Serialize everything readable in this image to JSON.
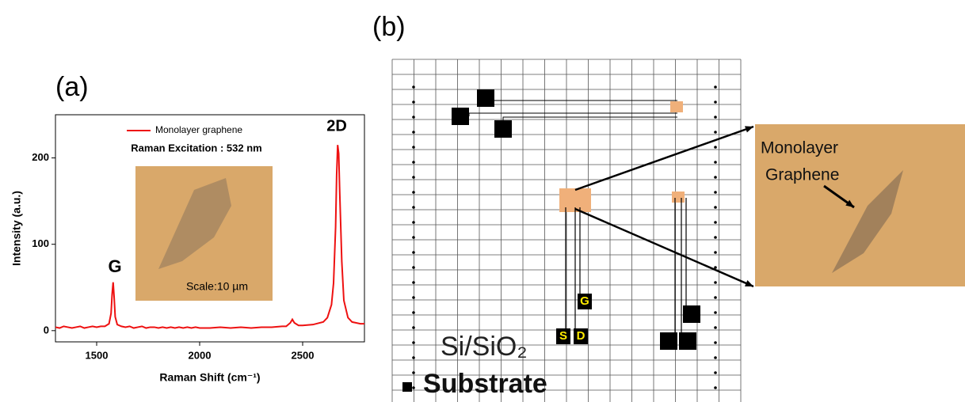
{
  "chart_data": {
    "type": "line",
    "xlabel": "Raman Shift (cm⁻¹)",
    "ylabel": "Intensity (a.u.)",
    "annotations": [
      "G",
      "2D",
      "Raman Excitation : 532 nm",
      "Scale:10 µm"
    ],
    "x": [
      1300,
      1320,
      1340,
      1360,
      1380,
      1400,
      1420,
      1440,
      1460,
      1480,
      1500,
      1520,
      1540,
      1560,
      1570,
      1575,
      1580,
      1585,
      1590,
      1600,
      1620,
      1640,
      1660,
      1680,
      1700,
      1720,
      1740,
      1760,
      1780,
      1800,
      1820,
      1840,
      1860,
      1880,
      1900,
      1920,
      1940,
      1960,
      1980,
      2000,
      2050,
      2100,
      2150,
      2200,
      2250,
      2300,
      2350,
      2400,
      2420,
      2440,
      2450,
      2460,
      2480,
      2500,
      2550,
      2600,
      2620,
      2640,
      2650,
      2660,
      2665,
      2670,
      2675,
      2680,
      2690,
      2700,
      2720,
      2740,
      2760,
      2780,
      2800
    ],
    "series": [
      {
        "name": "Monolayer graphene",
        "color": "#ee1111",
        "values": [
          4,
          3,
          5,
          4,
          3,
          4,
          5,
          3,
          4,
          5,
          4,
          5,
          5,
          8,
          20,
          42,
          56,
          38,
          16,
          7,
          5,
          4,
          5,
          3,
          4,
          5,
          3,
          4,
          4,
          3,
          4,
          3,
          4,
          3,
          4,
          3,
          4,
          3,
          4,
          3,
          3,
          4,
          3,
          4,
          3,
          4,
          4,
          5,
          5,
          9,
          13,
          9,
          6,
          6,
          7,
          10,
          15,
          30,
          55,
          120,
          180,
          215,
          205,
          160,
          80,
          35,
          15,
          10,
          9,
          8,
          8
        ]
      }
    ],
    "xlim": [
      1300,
      2800
    ],
    "xticks": [
      1500,
      2000,
      2500
    ],
    "ylim": [
      -13,
      250
    ],
    "yticks": [
      0,
      100,
      200
    ],
    "legend": "top"
  },
  "panels": {
    "a_label": "(a)",
    "b_label": "(b)",
    "diagram": {
      "material": "Si/SiO₂",
      "substrate": "Substrate",
      "pads": [
        "S",
        "D",
        "G"
      ],
      "callout": [
        "Monolayer",
        "Graphene"
      ]
    }
  }
}
